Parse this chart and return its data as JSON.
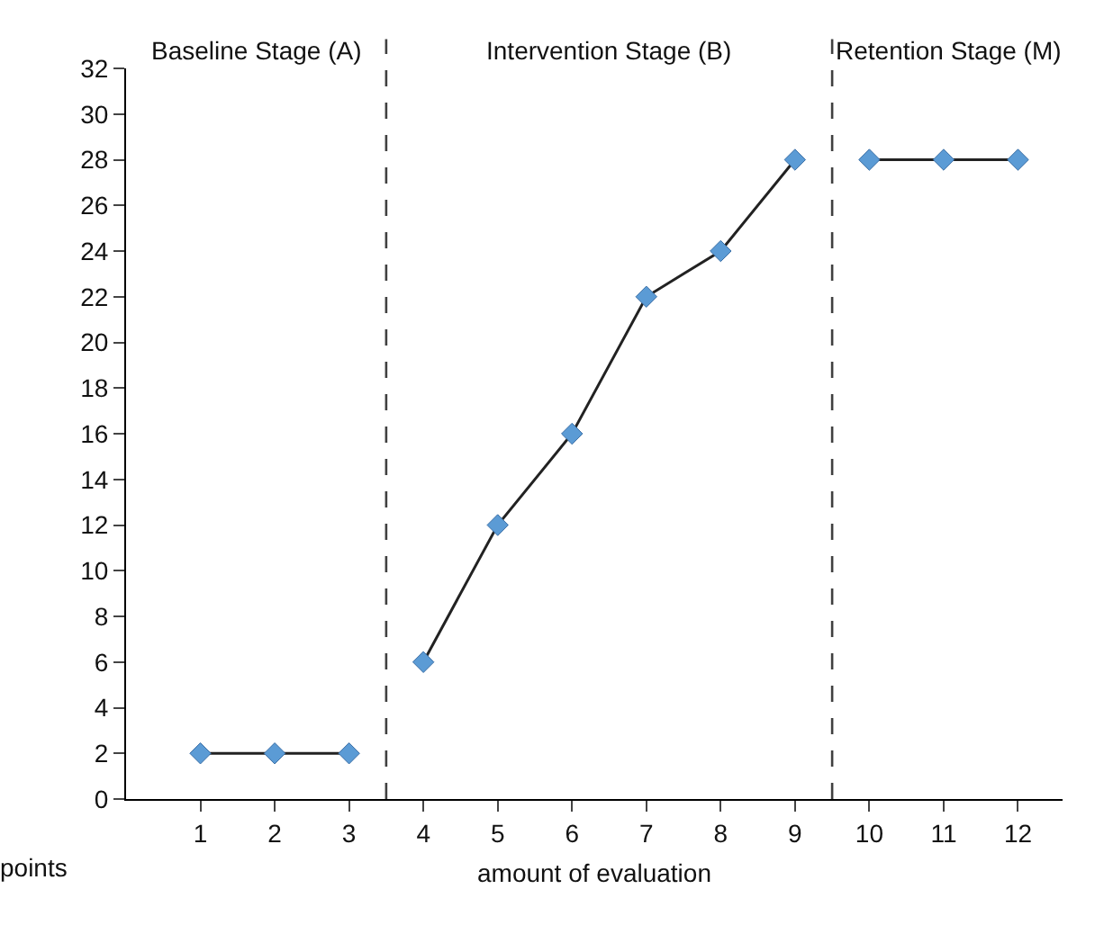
{
  "chart_data": {
    "type": "line",
    "xlabel": "amount of evaluation",
    "ylabel": "points",
    "annotations": [
      "Baseline Stage (A)",
      "Intervention Stage (B)",
      "Retention Stage (M)"
    ],
    "series": [
      {
        "color": "#5b9bd5",
        "x": [
          1,
          2,
          3
        ],
        "values": [
          2,
          2,
          2
        ]
      },
      {
        "color": "#5b9bd5",
        "x": [
          4,
          5,
          6,
          7,
          8,
          9
        ],
        "values": [
          6,
          12,
          16,
          22,
          24,
          28
        ]
      },
      {
        "color": "#5b9bd5",
        "x": [
          10,
          11,
          12
        ],
        "values": [
          28,
          28,
          28
        ]
      }
    ],
    "xlim": [
      0,
      12.6
    ],
    "xticks": [
      1,
      2,
      3,
      4,
      5,
      6,
      7,
      8,
      9,
      10,
      11,
      12
    ],
    "ylim": [
      0,
      32
    ],
    "yticks": [
      0,
      2,
      4,
      6,
      8,
      10,
      12,
      14,
      16,
      18,
      20,
      22,
      24,
      26,
      28,
      30,
      32
    ],
    "ref_lines": [
      {
        "axis": "x",
        "value": 3.5,
        "line_style": "dashed",
        "color": "#404040"
      },
      {
        "axis": "x",
        "value": 9.5,
        "line_style": "dashed",
        "color": "#404040"
      }
    ],
    "marker": "diamond",
    "line_style": "solid"
  }
}
